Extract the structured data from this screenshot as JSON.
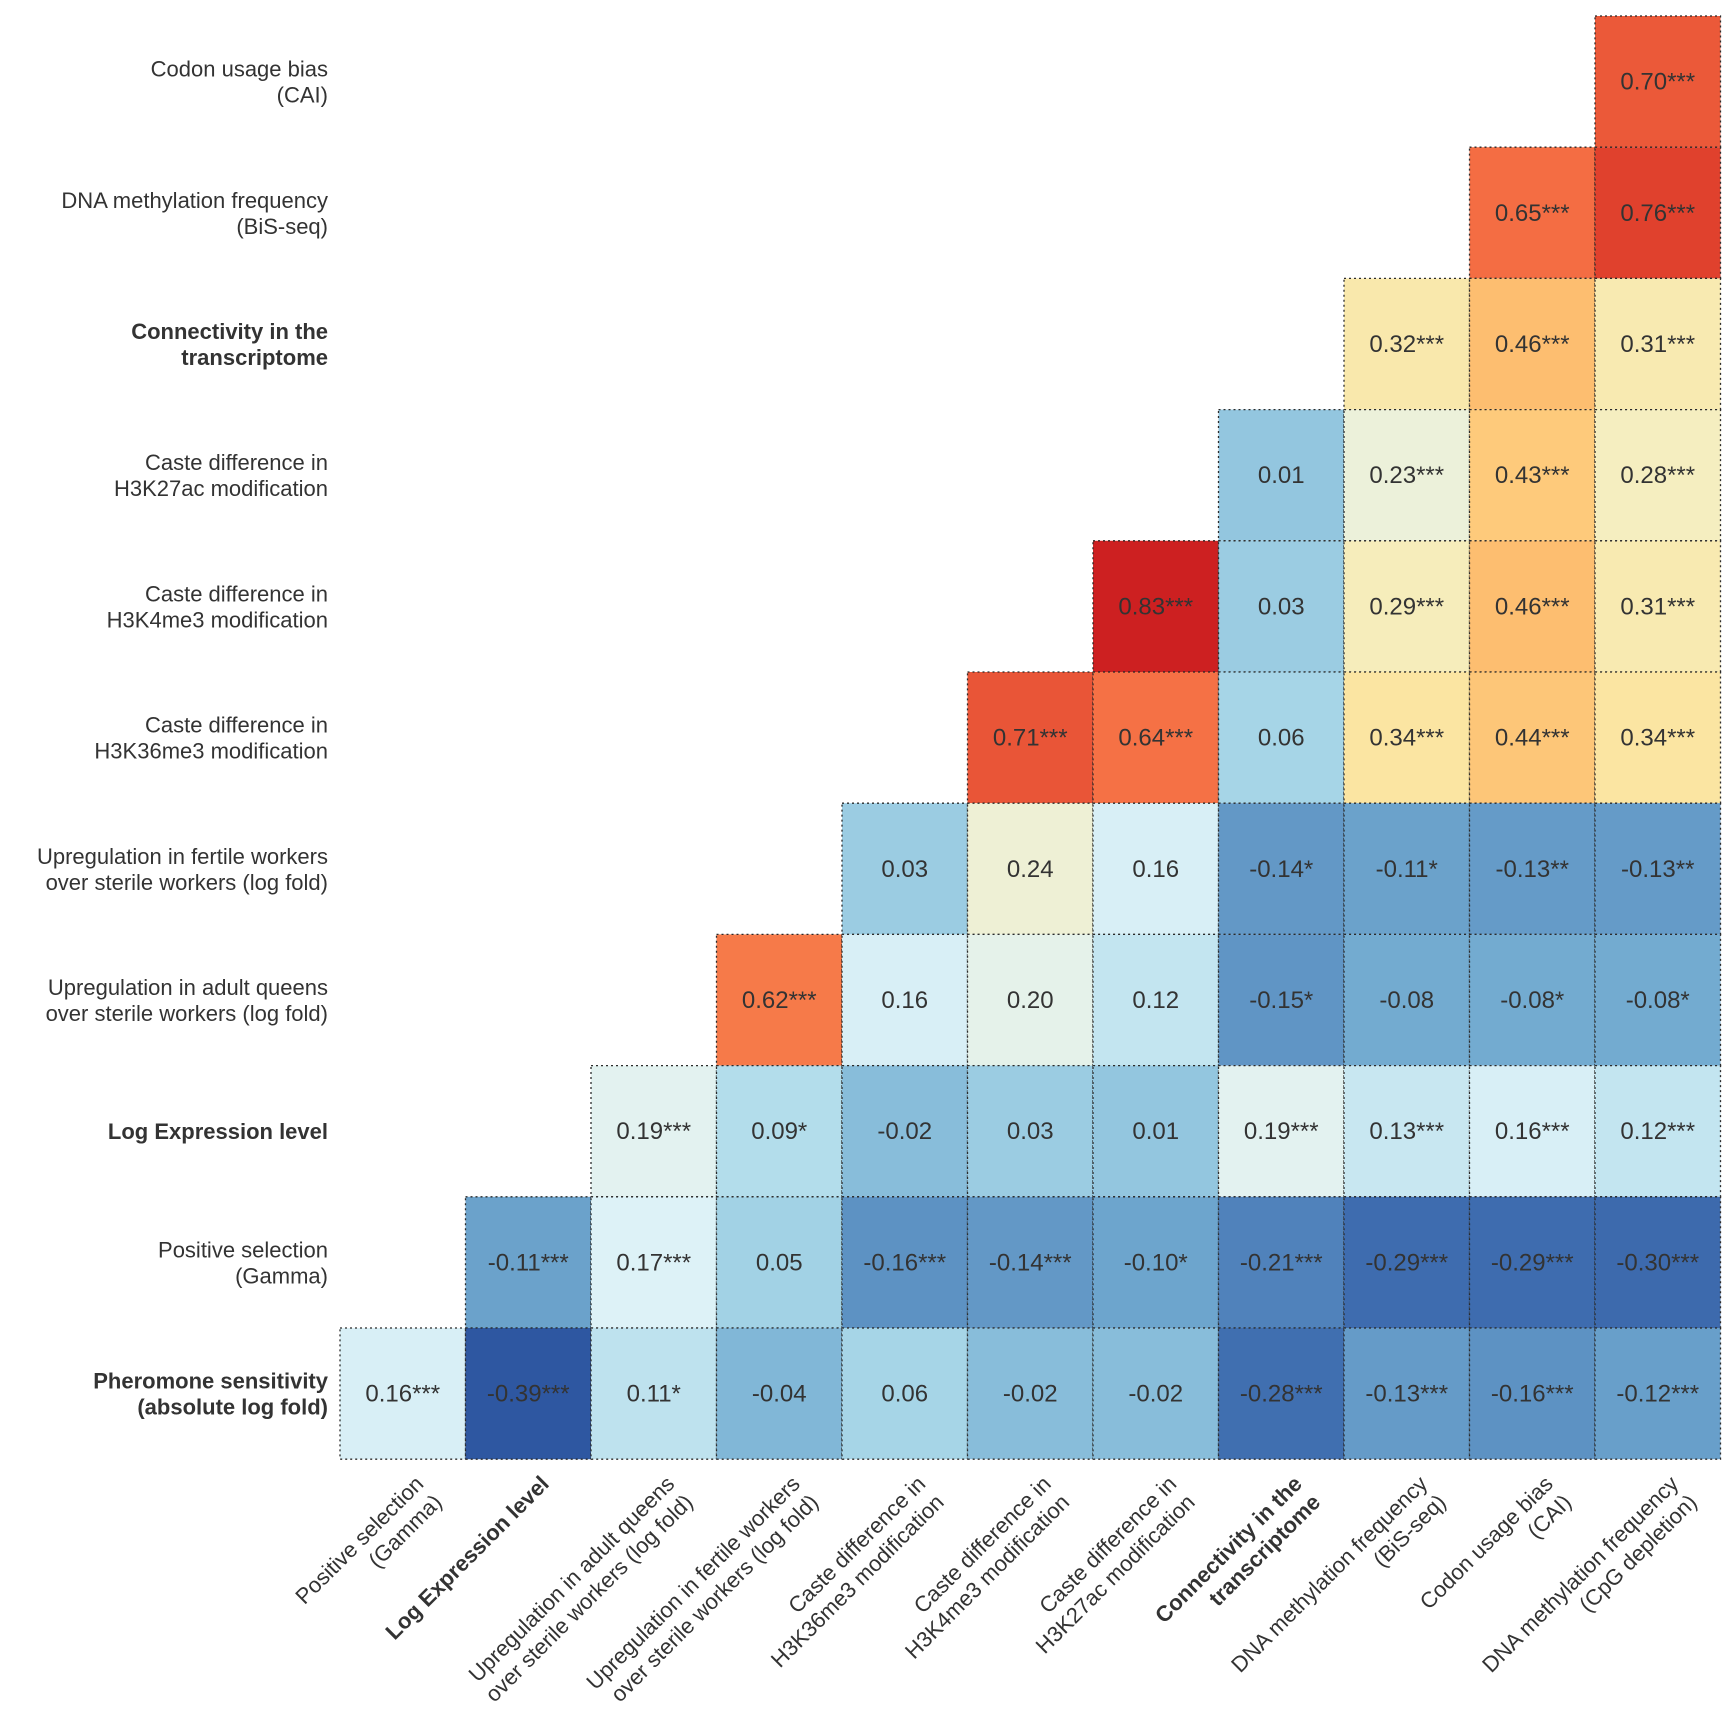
{
  "chart_data": {
    "type": "heatmap",
    "title": "",
    "color_scale": {
      "low": "#3058a0",
      "mid": "#f3f0c0",
      "high": "#c8161e",
      "domain": [
        -0.4,
        0.85
      ]
    },
    "rows": [
      {
        "label": [
          "Codon usage bias",
          "(CAI)"
        ],
        "bold": false
      },
      {
        "label": [
          "DNA methylation frequency",
          "(BiS-seq)"
        ],
        "bold": false
      },
      {
        "label": [
          "Connectivity in the",
          "transcriptome"
        ],
        "bold": true
      },
      {
        "label": [
          "Caste difference in",
          "H3K27ac modification"
        ],
        "bold": false
      },
      {
        "label": [
          "Caste difference in",
          "H3K4me3 modification"
        ],
        "bold": false
      },
      {
        "label": [
          "Caste difference in",
          "H3K36me3 modification"
        ],
        "bold": false
      },
      {
        "label": [
          "Upregulation in fertile workers",
          "over sterile workers (log fold)"
        ],
        "bold": false
      },
      {
        "label": [
          "Upregulation in adult queens",
          "over sterile workers (log fold)"
        ],
        "bold": false
      },
      {
        "label": [
          "Log Expression level"
        ],
        "bold": true
      },
      {
        "label": [
          "Positive selection",
          "(Gamma)"
        ],
        "bold": false
      },
      {
        "label": [
          "Pheromone sensitivity",
          "(absolute log fold)"
        ],
        "bold": true
      }
    ],
    "columns": [
      {
        "label": [
          "Positive selection",
          "(Gamma)"
        ],
        "bold": false
      },
      {
        "label": [
          "Log Expression level"
        ],
        "bold": true
      },
      {
        "label": [
          "Upregulation in adult queens",
          "over sterile workers (log fold)"
        ],
        "bold": false
      },
      {
        "label": [
          "Upregulation in fertile workers",
          "over sterile workers (log fold)"
        ],
        "bold": false
      },
      {
        "label": [
          "Caste difference in",
          "H3K36me3 modification"
        ],
        "bold": false
      },
      {
        "label": [
          "Caste difference in",
          "H3K4me3 modification"
        ],
        "bold": false
      },
      {
        "label": [
          "Caste difference in",
          "H3K27ac modification"
        ],
        "bold": false
      },
      {
        "label": [
          "Connectivity in the",
          "transcriptome"
        ],
        "bold": true
      },
      {
        "label": [
          "DNA methylation frequency",
          "(BiS-seq)"
        ],
        "bold": false
      },
      {
        "label": [
          "Codon usage bias",
          "(CAI)"
        ],
        "bold": false
      },
      {
        "label": [
          "DNA methylation frequency",
          "(CpG depletion)"
        ],
        "bold": false
      }
    ],
    "cells": [
      [
        null,
        null,
        null,
        null,
        null,
        null,
        null,
        null,
        null,
        null,
        {
          "value": 0.7,
          "sig": "***"
        }
      ],
      [
        null,
        null,
        null,
        null,
        null,
        null,
        null,
        null,
        null,
        {
          "value": 0.65,
          "sig": "***"
        },
        {
          "value": 0.76,
          "sig": "***"
        }
      ],
      [
        null,
        null,
        null,
        null,
        null,
        null,
        null,
        null,
        {
          "value": 0.32,
          "sig": "***"
        },
        {
          "value": 0.46,
          "sig": "***"
        },
        {
          "value": 0.31,
          "sig": "***"
        }
      ],
      [
        null,
        null,
        null,
        null,
        null,
        null,
        null,
        {
          "value": 0.01,
          "sig": ""
        },
        {
          "value": 0.23,
          "sig": "***"
        },
        {
          "value": 0.43,
          "sig": "***"
        },
        {
          "value": 0.28,
          "sig": "***"
        }
      ],
      [
        null,
        null,
        null,
        null,
        null,
        null,
        {
          "value": 0.83,
          "sig": "***"
        },
        {
          "value": 0.03,
          "sig": ""
        },
        {
          "value": 0.29,
          "sig": "***"
        },
        {
          "value": 0.46,
          "sig": "***"
        },
        {
          "value": 0.31,
          "sig": "***"
        }
      ],
      [
        null,
        null,
        null,
        null,
        null,
        {
          "value": 0.71,
          "sig": "***"
        },
        {
          "value": 0.64,
          "sig": "***"
        },
        {
          "value": 0.06,
          "sig": ""
        },
        {
          "value": 0.34,
          "sig": "***"
        },
        {
          "value": 0.44,
          "sig": "***"
        },
        {
          "value": 0.34,
          "sig": "***"
        }
      ],
      [
        null,
        null,
        null,
        null,
        {
          "value": 0.03,
          "sig": ""
        },
        {
          "value": 0.24,
          "sig": ""
        },
        {
          "value": 0.16,
          "sig": ""
        },
        {
          "value": -0.14,
          "sig": "*"
        },
        {
          "value": -0.11,
          "sig": "*"
        },
        {
          "value": -0.13,
          "sig": "**"
        },
        {
          "value": -0.13,
          "sig": "**"
        }
      ],
      [
        null,
        null,
        null,
        {
          "value": 0.62,
          "sig": "***"
        },
        {
          "value": 0.16,
          "sig": ""
        },
        {
          "value": 0.2,
          "sig": ""
        },
        {
          "value": 0.12,
          "sig": ""
        },
        {
          "value": -0.15,
          "sig": "*"
        },
        {
          "value": -0.08,
          "sig": ""
        },
        {
          "value": -0.08,
          "sig": "*"
        },
        {
          "value": -0.08,
          "sig": "*"
        }
      ],
      [
        null,
        null,
        {
          "value": 0.19,
          "sig": "***"
        },
        {
          "value": 0.09,
          "sig": "*"
        },
        {
          "value": -0.02,
          "sig": ""
        },
        {
          "value": 0.03,
          "sig": ""
        },
        {
          "value": 0.01,
          "sig": ""
        },
        {
          "value": 0.19,
          "sig": "***"
        },
        {
          "value": 0.13,
          "sig": "***"
        },
        {
          "value": 0.16,
          "sig": "***"
        },
        {
          "value": 0.12,
          "sig": "***"
        }
      ],
      [
        null,
        {
          "value": -0.11,
          "sig": "***"
        },
        {
          "value": 0.17,
          "sig": "***"
        },
        {
          "value": 0.05,
          "sig": ""
        },
        {
          "value": -0.16,
          "sig": "***"
        },
        {
          "value": -0.14,
          "sig": "***"
        },
        {
          "value": -0.1,
          "sig": "*"
        },
        {
          "value": -0.21,
          "sig": "***"
        },
        {
          "value": -0.29,
          "sig": "***"
        },
        {
          "value": -0.29,
          "sig": "***"
        },
        {
          "value": -0.3,
          "sig": "***"
        }
      ],
      [
        {
          "value": 0.16,
          "sig": "***"
        },
        {
          "value": -0.39,
          "sig": "***"
        },
        {
          "value": 0.11,
          "sig": "*"
        },
        {
          "value": -0.04,
          "sig": ""
        },
        {
          "value": 0.06,
          "sig": ""
        },
        {
          "value": -0.02,
          "sig": ""
        },
        {
          "value": -0.02,
          "sig": ""
        },
        {
          "value": -0.28,
          "sig": "***"
        },
        {
          "value": -0.13,
          "sig": "***"
        },
        {
          "value": -0.16,
          "sig": "***"
        },
        {
          "value": -0.12,
          "sig": "***"
        }
      ]
    ]
  }
}
